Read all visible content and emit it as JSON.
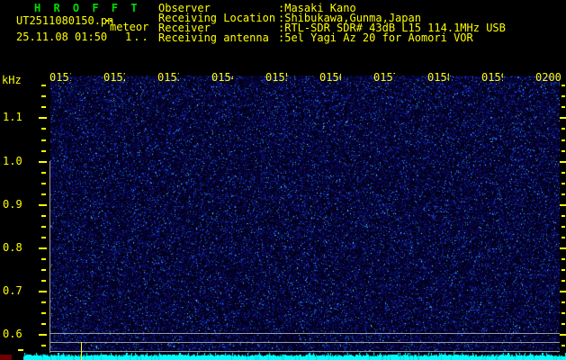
{
  "title": "H R O F F T",
  "header": {
    "filename": "UT2511080150.pn",
    "mode_label": "meteor",
    "datetime": "25.11.08 01:50",
    "counter": "1..",
    "fields": [
      {
        "label": "Observer",
        "value": ":Masaki Kano"
      },
      {
        "label": "Receiving Location",
        "value": ":Shibukawa,Gunma,Japan"
      },
      {
        "label": "Receiver",
        "value": ":RTL-SDR SDR# 43dB L15 114.1MHz USB"
      },
      {
        "label": "Receiving antenna",
        "value": ":5el Yagi Az 20 for Aomori VOR"
      }
    ]
  },
  "spectrogram": {
    "unit_label": "kHz",
    "x_labels": [
      "0151",
      "0152",
      "0153",
      "0154",
      "0155",
      "0156",
      "0157",
      "0158",
      "0159",
      "0200"
    ],
    "y_labels": [
      "1.1",
      "1.0",
      "0.9",
      "0.8",
      "0.7",
      "0.6"
    ],
    "colors": {
      "background": "#000000",
      "title_green": "#00dd00",
      "text_yellow": "#ffff00",
      "grid_gray": "#9a9a9a",
      "level_band_cyan": "#00ffff",
      "noise_blue": "#0000a0",
      "corner_red": "#6e0000"
    }
  }
}
